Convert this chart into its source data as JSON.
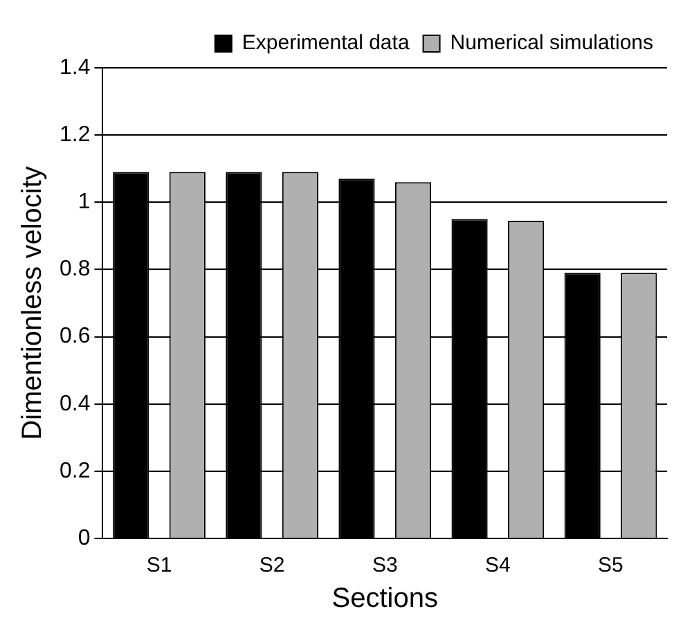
{
  "chart_data": {
    "type": "bar",
    "xlabel": "Sections",
    "ylabel": "Dimentionless velocity",
    "categories": [
      "S1",
      "S2",
      "S3",
      "S4",
      "S5"
    ],
    "series": [
      {
        "name": "Experimental data",
        "color": "#000000",
        "values": [
          1.09,
          1.09,
          1.07,
          0.95,
          0.79
        ]
      },
      {
        "name": "Numerical simulations",
        "color": "#b0b0b0",
        "values": [
          1.09,
          1.09,
          1.06,
          0.945,
          0.79
        ]
      }
    ],
    "ylim": [
      0,
      1.4
    ],
    "yticks": [
      0,
      0.2,
      0.4,
      0.6,
      0.8,
      1,
      1.2,
      1.4
    ],
    "grid": "y",
    "legend": "top right"
  }
}
